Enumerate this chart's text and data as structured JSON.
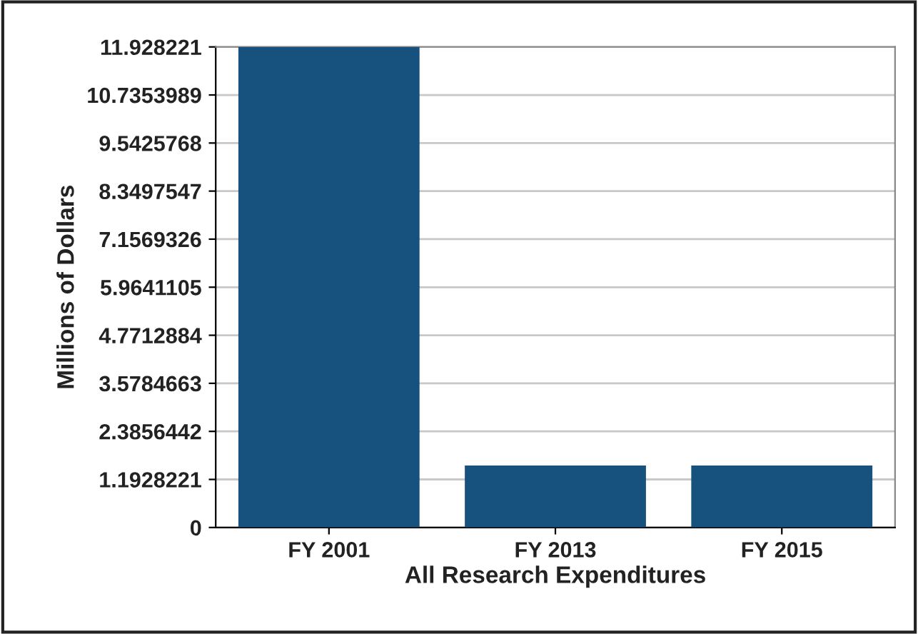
{
  "chart_data": {
    "type": "bar",
    "xlabel": "All Research Expenditures",
    "ylabel": "Millions of Dollars",
    "categories": [
      "FY 2001",
      "FY 2013",
      "FY 2015"
    ],
    "values": [
      11.928221,
      1.54,
      1.54
    ],
    "color": "#17517e",
    "ylim": [
      0,
      11.928221
    ],
    "yticks": [
      0,
      1.1928221,
      2.3856442,
      3.5784663,
      4.7712884,
      5.9641105,
      7.1569326,
      8.3497547,
      9.5425768,
      10.7353989,
      11.928221
    ],
    "grid": "y",
    "legend": false
  }
}
